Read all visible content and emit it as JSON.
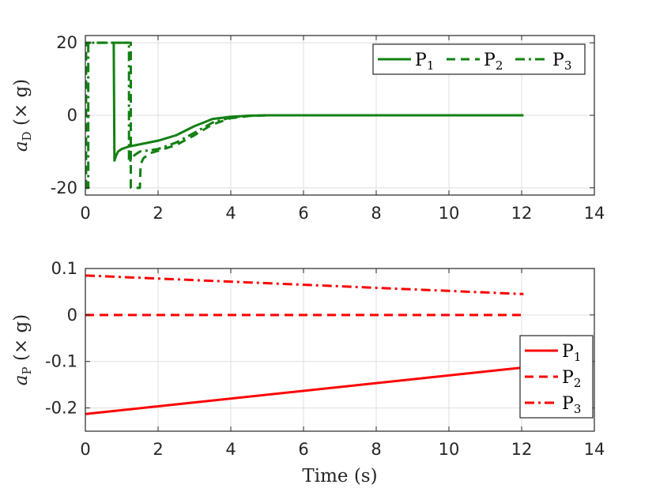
{
  "chart_data": [
    {
      "type": "line",
      "title": "",
      "xlabel": "",
      "ylabel": "a_D (× g)",
      "ylabel_parts": {
        "symbol": "a",
        "subscript": "D",
        "unit": "(× g)"
      },
      "xlim": [
        0,
        14
      ],
      "ylim": [
        -22,
        22
      ],
      "xticks": [
        0,
        2,
        4,
        6,
        8,
        10,
        12,
        14
      ],
      "xtick_labels": [
        "0",
        "2",
        "4",
        "6",
        "8",
        "10",
        "12",
        "14"
      ],
      "yticks": [
        -20,
        0,
        20
      ],
      "ytick_labels": [
        "-20",
        "0",
        "20"
      ],
      "grid": true,
      "legend_position": "top-right",
      "legend_orientation": "horizontal",
      "color": "#138013",
      "series": [
        {
          "name": "P1",
          "legend_base": "P",
          "legend_sub": "1",
          "dash": "solid",
          "x": [
            0.78,
            0.78,
            0.8,
            0.85,
            0.9,
            1.0,
            1.2,
            1.5,
            2.0,
            2.5,
            3.0,
            3.5,
            4.0,
            4.5,
            5.0,
            6.0,
            8.0,
            10.0,
            12.05
          ],
          "y": [
            20,
            20,
            -12.5,
            -11.0,
            -10.0,
            -9.3,
            -8.6,
            -8.0,
            -7.0,
            -5.5,
            -3.0,
            -1.0,
            -0.4,
            -0.1,
            0,
            0,
            0,
            0,
            0
          ]
        },
        {
          "name": "P2",
          "legend_base": "P",
          "legend_sub": "2",
          "dash": "dashed",
          "x": [
            0.0,
            0.02,
            0.02,
            1.25,
            1.25,
            1.3,
            1.34,
            1.36,
            1.5,
            1.52,
            1.6,
            1.8,
            2.0,
            2.5,
            3.0,
            3.5,
            4.0,
            4.5,
            5.0,
            6.0,
            8.0,
            10.0,
            12.05
          ],
          "y": [
            -20,
            -20,
            20,
            20,
            -20,
            -20,
            -20,
            -20,
            -20,
            -13.5,
            -11.8,
            -10.4,
            -9.8,
            -8.2,
            -5.5,
            -2.5,
            -0.8,
            -0.2,
            0,
            0,
            0,
            0,
            0
          ]
        },
        {
          "name": "P3",
          "legend_base": "P",
          "legend_sub": "3",
          "dash": "dashdot",
          "x": [
            0.0,
            0.08,
            0.08,
            1.2,
            1.2,
            1.35,
            1.5,
            1.8,
            2.0,
            2.5,
            3.0,
            3.5,
            4.0,
            4.5,
            5.0,
            6.0,
            8.0,
            10.0,
            12.05
          ],
          "y": [
            -20,
            -20,
            20,
            20,
            -13.0,
            -11.0,
            -10.0,
            -9.6,
            -9.3,
            -7.5,
            -4.8,
            -2.0,
            -0.6,
            -0.1,
            0,
            0,
            0,
            0,
            0
          ]
        }
      ]
    },
    {
      "type": "line",
      "title": "",
      "xlabel": "Time (s)",
      "ylabel": "a_P (× g)",
      "ylabel_parts": {
        "symbol": "a",
        "subscript": "P",
        "unit": "(× g)"
      },
      "xlim": [
        0,
        14
      ],
      "ylim": [
        -0.25,
        0.1
      ],
      "xticks": [
        0,
        2,
        4,
        6,
        8,
        10,
        12,
        14
      ],
      "xtick_labels": [
        "0",
        "2",
        "4",
        "6",
        "8",
        "10",
        "12",
        "14"
      ],
      "yticks": [
        -0.2,
        -0.1,
        0,
        0.1
      ],
      "ytick_labels": [
        "-0.2",
        "-0.1",
        "0",
        "0.1"
      ],
      "grid": true,
      "legend_position": "bottom-right",
      "legend_orientation": "vertical",
      "color": "#ff0000",
      "series": [
        {
          "name": "P1",
          "legend_base": "P",
          "legend_sub": "1",
          "dash": "solid",
          "x": [
            0,
            12.05
          ],
          "y": [
            -0.213,
            -0.113
          ]
        },
        {
          "name": "P2",
          "legend_base": "P",
          "legend_sub": "2",
          "dash": "dashed",
          "x": [
            0,
            12.05
          ],
          "y": [
            0,
            0
          ]
        },
        {
          "name": "P3",
          "legend_base": "P",
          "legend_sub": "3",
          "dash": "dashdot",
          "x": [
            0,
            12.05
          ],
          "y": [
            0.085,
            0.045
          ]
        }
      ]
    }
  ]
}
